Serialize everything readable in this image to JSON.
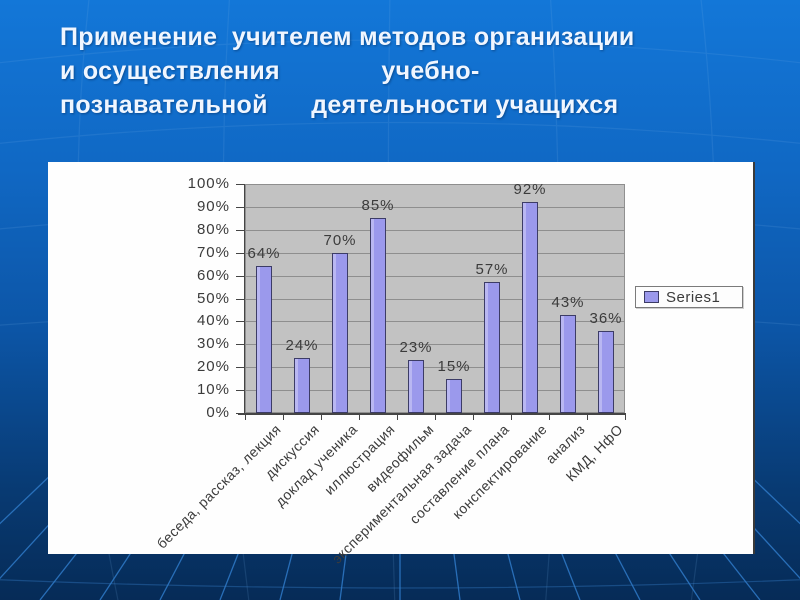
{
  "slide": {
    "title_lines": [
      "Применение  учителем методов организации",
      "и осуществления              учебно-",
      "познавательной      деятельности учащихся"
    ]
  },
  "chart_data": {
    "type": "bar",
    "title": "",
    "xlabel": "",
    "ylabel": "",
    "series_name": "Series1",
    "categories": [
      "беседа, рассказ, лекция",
      "дискуссия",
      "доклад ученика",
      "иллюстрация",
      "видеофильм",
      "экспериментальная задача",
      "составление плана",
      "конспектирование",
      "анализ",
      "КМД, НфО"
    ],
    "values": [
      64,
      24,
      70,
      85,
      23,
      15,
      57,
      92,
      43,
      36
    ],
    "value_labels": [
      "64%",
      "24%",
      "70%",
      "85%",
      "23%",
      "15%",
      "57%",
      "92%",
      "43%",
      "36%"
    ],
    "y_ticks": [
      "100%",
      "90%",
      "80%",
      "70%",
      "60%",
      "50%",
      "40%",
      "30%",
      "20%",
      "10%",
      "0%"
    ],
    "ylim": [
      0,
      100
    ],
    "grid": true,
    "legend_position": "right",
    "colors": {
      "bar_fill": "#9B99EC",
      "bar_highlight": "#B9B7F2",
      "bar_border": "#3C3C66",
      "plot_bg": "#C2C2C2",
      "gridline": "#8E8E8E",
      "axis": "#454545",
      "chart_text": "#3B3B3B",
      "panel_bg": "#FEFEFE",
      "slide_bg_top": "#1377D8",
      "slide_bg_bottom": "#062B57",
      "bg_line": "#2F7AC8",
      "title_text": "#F0F6FF"
    }
  }
}
